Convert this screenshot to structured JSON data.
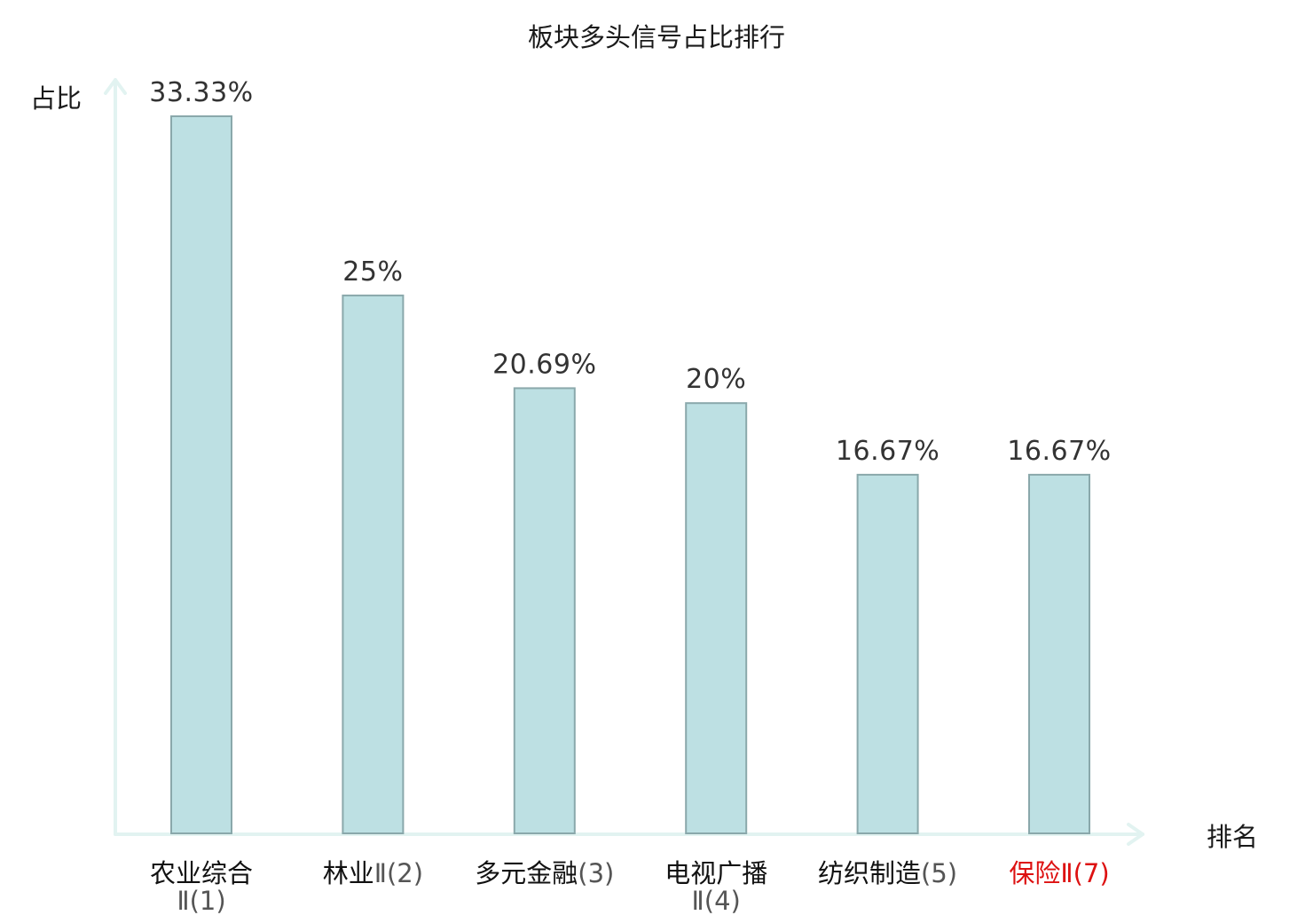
{
  "chart_data": {
    "type": "bar",
    "title": "板块多头信号占比排行",
    "ylabel": "占比",
    "xlabel": "排名",
    "ylim": [
      0,
      35
    ],
    "grid": false,
    "categories": [
      {
        "name": "农业综合",
        "suffix": "Ⅱ(1)",
        "wrap": true,
        "highlight": false
      },
      {
        "name": "林业",
        "suffix": "Ⅱ(2)",
        "wrap": false,
        "highlight": false
      },
      {
        "name": "多元金融",
        "suffix": "(3)",
        "wrap": false,
        "highlight": false
      },
      {
        "name": "电视广播",
        "suffix": "Ⅱ(4)",
        "wrap": true,
        "highlight": false
      },
      {
        "name": "纺织制造",
        "suffix": "(5)",
        "wrap": false,
        "highlight": false
      },
      {
        "name": "保险",
        "suffix": "Ⅱ(7)",
        "wrap": false,
        "highlight": true
      }
    ],
    "values": [
      33.33,
      25,
      20.69,
      20,
      16.67,
      16.67
    ],
    "value_labels": [
      "33.33%",
      "25%",
      "20.69%",
      "20%",
      "16.67%",
      "16.67%"
    ],
    "colors": {
      "bar_fill": "#bde0e3",
      "bar_stroke": "#8aa8ab",
      "axis": "#e2f3f1",
      "highlight_label": "#dd1111"
    }
  }
}
